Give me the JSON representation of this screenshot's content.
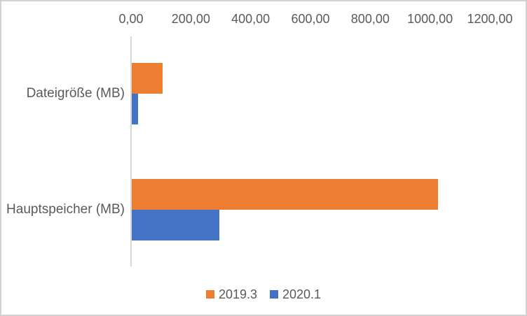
{
  "chart_data": {
    "type": "bar",
    "orientation": "horizontal",
    "title": "",
    "categories": [
      "Dateigröße (MB)",
      "Hauptspeicher (MB)"
    ],
    "series": [
      {
        "name": "2019.3",
        "color": "#ED7D31",
        "values": [
          104,
          1024
        ]
      },
      {
        "name": "2020.1",
        "color": "#4472C4",
        "values": [
          20,
          293
        ]
      }
    ],
    "value_axis": {
      "position": "top",
      "min": 0,
      "max": 1200,
      "step": 200,
      "tick_labels": [
        "0,00",
        "200,00",
        "400,00",
        "600,00",
        "800,00",
        "1000,00",
        "1200,00"
      ],
      "number_format": "german-decimal-comma"
    },
    "category_axis": {
      "position": "left",
      "labels": [
        "Dateigröße (MB)",
        "Hauptspeicher (MB)"
      ]
    },
    "legend": {
      "position": "bottom",
      "entries": [
        {
          "label": "2019.3",
          "color": "#ED7D31"
        },
        {
          "label": "2020.1",
          "color": "#4472C4"
        }
      ]
    },
    "gridlines": false,
    "colors": {
      "axis_line": "#D9D9D9",
      "text": "#595959",
      "frame_border": "#D2D2D2",
      "background": "#FFFFFF"
    }
  }
}
